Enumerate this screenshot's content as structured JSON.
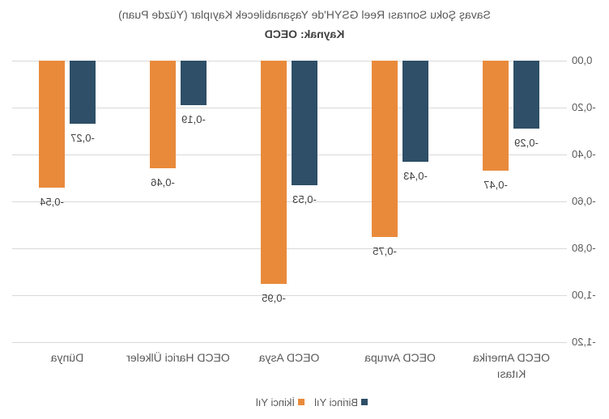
{
  "chart_data": {
    "type": "bar",
    "title": "Savaş Şoku Sonrası Reel GSYH'de Yaşanabilecek Kayıplar (Yüzde Puan)",
    "subtitle": "Kaynak: OECD",
    "categories": [
      "OECD Amerika Kıtası",
      "OECD Avrupa",
      "OECD Asya",
      "OECD Harici Ülkeler",
      "Dünya"
    ],
    "series": [
      {
        "name": "Birinci Yıl",
        "color": "#2E4F67",
        "values": [
          -0.29,
          -0.43,
          -0.53,
          -0.19,
          -0.27
        ],
        "labels": [
          "-0,29",
          "-0,43",
          "-0,53",
          "-0,19",
          "-0,27"
        ]
      },
      {
        "name": "İkinci Yıl",
        "color": "#E98A3B",
        "values": [
          -0.47,
          -0.75,
          -0.95,
          -0.46,
          -0.54
        ],
        "labels": [
          "-0,47",
          "-0,75",
          "-0,95",
          "-0,46",
          "-0,54"
        ]
      }
    ],
    "ylim": [
      -1.2,
      0
    ],
    "yticks": [
      0,
      -0.2,
      -0.4,
      -0.6,
      -0.8,
      -1.0,
      -1.2
    ],
    "ytick_labels": [
      "0,00",
      "-0,20",
      "-0,40",
      "-0,60",
      "-0,80",
      "-1,00",
      "-1,20"
    ],
    "xlabel": "",
    "ylabel": "",
    "grid": true,
    "legend": "bottom"
  }
}
